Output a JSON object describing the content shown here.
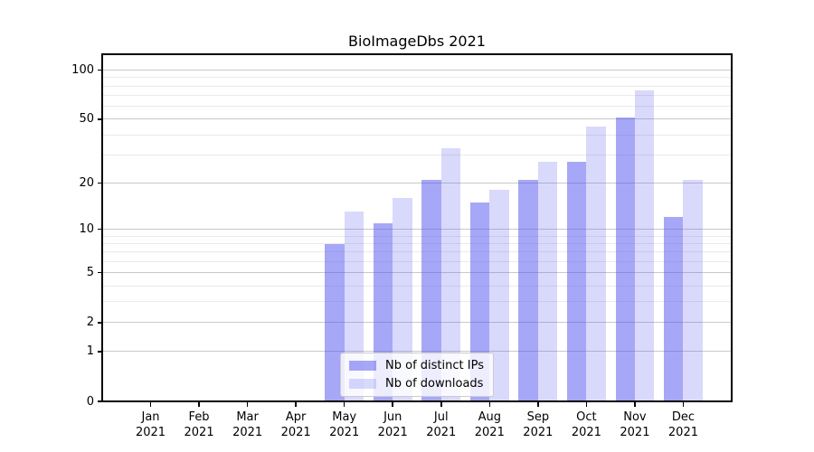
{
  "chart_data": {
    "type": "bar",
    "title": "BioImageDbs 2021",
    "months": [
      "Jan",
      "Feb",
      "Mar",
      "Apr",
      "May",
      "Jun",
      "Jul",
      "Aug",
      "Sep",
      "Oct",
      "Nov",
      "Dec"
    ],
    "year": "2021",
    "series": [
      {
        "name": "Nb of distinct IPs",
        "color": "rgba(80,80,240,0.5)",
        "values": [
          0,
          0,
          0,
          0,
          8,
          11,
          21,
          15,
          21,
          27,
          51,
          12
        ]
      },
      {
        "name": "Nb of downloads",
        "color": "rgba(80,80,240,0.22)",
        "values": [
          0,
          0,
          0,
          0,
          13,
          16,
          33,
          18,
          27,
          45,
          75,
          21
        ]
      }
    ],
    "yscale": "log1p",
    "ylim": [
      0,
      125
    ],
    "y_major_ticks": [
      0,
      1,
      2,
      5,
      10,
      20,
      50,
      100
    ],
    "y_minor_ticks": [
      3,
      4,
      6,
      7,
      8,
      9,
      30,
      40,
      60,
      70,
      80,
      90
    ],
    "xlabel": "",
    "ylabel": "",
    "grid": true,
    "legend_position": "lower center"
  },
  "colors": {
    "background": "#ffffff",
    "grid_major": "#c9c9c9",
    "grid_minor": "#eaeaea",
    "spine": "#000000",
    "text": "#000000",
    "legend_bg": "rgba(255,255,255,0.8)",
    "legend_border": "#cccccc"
  }
}
